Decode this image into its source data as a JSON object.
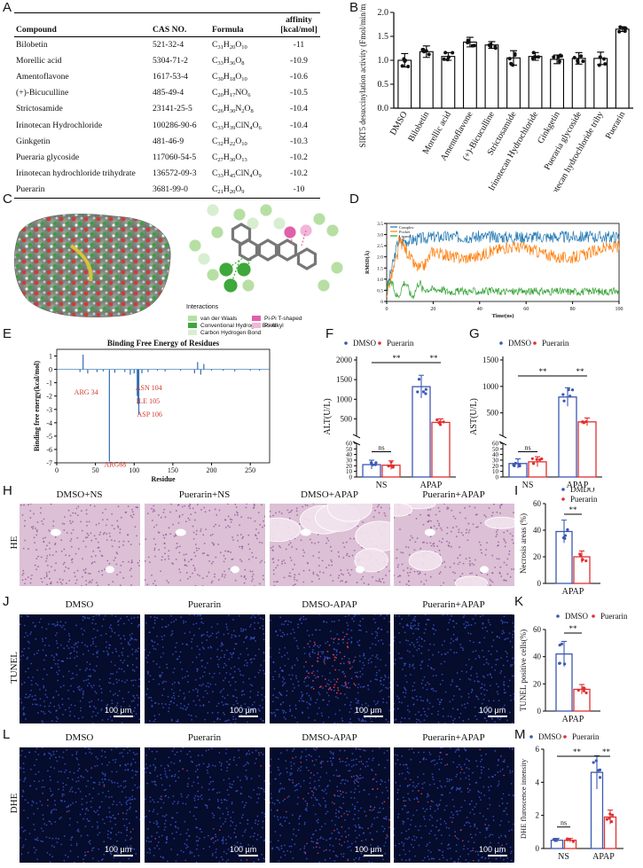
{
  "panels": {
    "A": "A",
    "B": "B",
    "C": "C",
    "D": "D",
    "E": "E",
    "F": "F",
    "G": "G",
    "H": "H",
    "I": "I",
    "J": "J",
    "K": "K",
    "L": "L",
    "M": "M"
  },
  "table": {
    "headers": [
      "Compound",
      "CAS NO.",
      "Formula",
      "affinity [kcal/mol]"
    ],
    "rows": [
      {
        "compound": "Bilobetin",
        "cas": "521-32-4",
        "formula": [
          "C",
          "31",
          "H",
          "20",
          "O",
          "10"
        ],
        "affinity": "-11"
      },
      {
        "compound": "Morellic acid",
        "cas": "5304-71-2",
        "formula": [
          "C",
          "33",
          "H",
          "36",
          "O",
          "8"
        ],
        "affinity": "-10.9"
      },
      {
        "compound": "Amentoflavone",
        "cas": "1617-53-4",
        "formula": [
          "C",
          "30",
          "H",
          "18",
          "O",
          "10"
        ],
        "affinity": "-10.6"
      },
      {
        "compound": "(+)-Bicuculline",
        "cas": "485-49-4",
        "formula": [
          "C",
          "20",
          "H",
          "17",
          "NO",
          "6"
        ],
        "affinity": "-10.5"
      },
      {
        "compound": "Strictosamide",
        "cas": "23141-25-5",
        "formula": [
          "C",
          "26",
          "H",
          "30",
          "N",
          "2",
          "O",
          "8"
        ],
        "affinity": "-10.4"
      },
      {
        "compound": "Irinotecan Hydrochloride",
        "cas": "100286-90-6",
        "formula": [
          "C",
          "33",
          "H",
          "39",
          "ClN",
          "4",
          "O",
          "6"
        ],
        "affinity": "-10.4"
      },
      {
        "compound": "Ginkgetin",
        "cas": "481-46-9",
        "formula": [
          "C",
          "32",
          "H",
          "22",
          "O",
          "10"
        ],
        "affinity": "-10.3"
      },
      {
        "compound": "Pueraria glycoside",
        "cas": "117060-54-5",
        "formula": [
          "C",
          "27",
          "H",
          "30",
          "O",
          "13"
        ],
        "affinity": "-10.2"
      },
      {
        "compound": "Irinotecan hydrochloride trihydrate",
        "cas": "136572-09-3",
        "formula": [
          "C",
          "33",
          "H",
          "45",
          "ClN",
          "4",
          "O",
          "9"
        ],
        "affinity": "-10.2"
      },
      {
        "compound": "Puerarin",
        "cas": "3681-99-0",
        "formula": [
          "C",
          "21",
          "H",
          "20",
          "O",
          "9"
        ],
        "affinity": "-10"
      }
    ]
  },
  "panel_c": {
    "interactions_title": "Interactions",
    "legend": [
      {
        "label": "van der Waals",
        "color": "#b7dfa4"
      },
      {
        "label": "Conventional Hydrogen Bond",
        "color": "#3fa83a"
      },
      {
        "label": "Carbon Hydrogen Bond",
        "color": "#d7eed0"
      },
      {
        "label": "Pi-Pi T-shaped",
        "color": "#e061a8"
      },
      {
        "label": "Pi-Alkyl",
        "color": "#f2b6d8"
      }
    ]
  },
  "panel_e_labels": [
    "ARG 34",
    "ASN 104",
    "ILE 105",
    "ASP 106",
    "ARG68"
  ],
  "panel_d_legend": [
    "Complex",
    "Pocket",
    "Ligand"
  ],
  "micrographs": {
    "he_row": "HE",
    "tunel_row": "TUNEL",
    "dhe_row": "DHE",
    "he_titles": [
      "DMSO+NS",
      "Puerarin+NS",
      "DMSO+APAP",
      "Puerarin+APAP"
    ],
    "tunel_titles": [
      "DMSO",
      "Puerarin",
      "DMSO-APAP",
      "Puerarin+APAP"
    ],
    "dhe_titles": [
      "DMSO",
      "Puerarin",
      "DMSO-APAP",
      "Puerarin+APAP"
    ],
    "scale": "100 μm"
  },
  "chart_data": [
    {
      "id": "B",
      "type": "bar",
      "ylabel": "SIRT5 desuccinylation activity (Fmol/min/mg protein)",
      "ylim": [
        0,
        2.0
      ],
      "yticks": [
        "0.0",
        "0.5",
        "1.0",
        "1.5",
        "2.0"
      ],
      "categories": [
        "DMSO",
        "Bilobetin",
        "Morellic acid",
        "Amentoflavone",
        "(+)-Bicuculline",
        "Strictosamide",
        "Irinotecan Hydrochloride",
        "Ginkgetin",
        "Pueraria glycoside",
        "Irinotecan hydrochloride trihy",
        "Puerarin"
      ],
      "values": [
        1.0,
        1.18,
        1.08,
        1.38,
        1.32,
        1.05,
        1.08,
        1.02,
        1.04,
        1.04,
        1.65
      ],
      "errors": [
        0.14,
        0.12,
        0.08,
        0.1,
        0.07,
        0.15,
        0.08,
        0.09,
        0.12,
        0.13,
        0.05
      ],
      "bar_colors": [
        "#ffffff",
        "#ffffff",
        "#ffffff",
        "#ffffff",
        "#ffffff",
        "#ffffff",
        "#ffffff",
        "#ffffff",
        "#ffffff",
        "#ffffff",
        "#ffffff"
      ]
    },
    {
      "id": "D",
      "type": "line",
      "xlabel": "Time(ns)",
      "ylabel": "RMSD(Å)",
      "xlim": [
        0,
        100
      ],
      "ylim": [
        0,
        3.5
      ],
      "xticks": [
        "0",
        "20",
        "40",
        "60",
        "80",
        "100"
      ],
      "yticks": [
        "0",
        "0.5",
        "1.0",
        "1.5",
        "2.0",
        "2.5",
        "3.0",
        "3.5"
      ],
      "series": [
        {
          "name": "Complex",
          "color": "#1f77b4",
          "level": 2.9
        },
        {
          "name": "Pocket",
          "color": "#ff7f0e",
          "level": 2.2
        },
        {
          "name": "Ligand",
          "color": "#2ca02c",
          "level": 0.45
        }
      ]
    },
    {
      "id": "E",
      "type": "bar",
      "title": "Binding Free Energy of Residues",
      "xlabel": "Residue",
      "ylabel": "Binding free energy(kcal/mol)",
      "xlim": [
        0,
        275
      ],
      "ylim": [
        -7,
        1.5
      ],
      "xticks": [
        "0",
        "50",
        "100",
        "150",
        "200",
        "250"
      ],
      "yticks": [
        "-7",
        "-6",
        "-5",
        "-4",
        "-3",
        "-2",
        "-1",
        "0",
        "1"
      ],
      "x": [
        30,
        34,
        40,
        52,
        60,
        68,
        75,
        88,
        95,
        100,
        104,
        105,
        106,
        110,
        118,
        130,
        140,
        160,
        178,
        182,
        186,
        190,
        200,
        215,
        230,
        250,
        262
      ],
      "values": [
        -0.2,
        1.1,
        -0.3,
        -0.2,
        -0.15,
        -6.9,
        -0.25,
        -0.2,
        -0.4,
        -0.3,
        -2.0,
        -2.6,
        -3.4,
        -0.3,
        -0.2,
        -0.1,
        -0.15,
        -0.1,
        -0.3,
        0.55,
        -0.4,
        0.4,
        -0.1,
        -0.1,
        -0.15,
        -0.1,
        -0.1
      ]
    },
    {
      "id": "F",
      "type": "bar",
      "ylabel": "ALT(U/L)",
      "legend": [
        "DMSO",
        "Puerarin"
      ],
      "groups": [
        "NS",
        "APAP"
      ],
      "series": [
        {
          "name": "DMSO",
          "values": [
            22,
            1320
          ],
          "color": "#3b58b4"
        },
        {
          "name": "Puerarin",
          "values": [
            21,
            410
          ],
          "color": "#e03030"
        }
      ],
      "yticks_low": [
        "0",
        "10",
        "20",
        "30",
        "40",
        "50",
        "60"
      ],
      "yticks_high": [
        "500",
        "1000",
        "1500",
        "2000"
      ],
      "sig": [
        "ns",
        "**",
        "**"
      ]
    },
    {
      "id": "G",
      "type": "bar",
      "ylabel": "AST(U/L)",
      "legend": [
        "DMSO",
        "Puerarin"
      ],
      "groups": [
        "NS",
        "APAP"
      ],
      "series": [
        {
          "name": "DMSO",
          "values": [
            24,
            800
          ],
          "color": "#3b58b4"
        },
        {
          "name": "Puerarin",
          "values": [
            27,
            330
          ],
          "color": "#e03030"
        }
      ],
      "yticks_low": [
        "0",
        "10",
        "20",
        "30",
        "40",
        "50",
        "60"
      ],
      "yticks_high": [
        "500",
        "1000",
        "1500"
      ],
      "sig": [
        "ns",
        "**",
        "**"
      ]
    },
    {
      "id": "I",
      "type": "bar",
      "ylabel": "Necrosis areas (%)",
      "legend": [
        "DMDO",
        "Puerarin"
      ],
      "groups": [
        "APAP"
      ],
      "series": [
        {
          "name": "DMDO",
          "values": [
            39
          ],
          "color": "#3b58b4"
        },
        {
          "name": "Puerarin",
          "values": [
            20
          ],
          "color": "#e03030"
        }
      ],
      "ylim": [
        0,
        60
      ],
      "yticks": [
        "0",
        "20",
        "40",
        "60"
      ],
      "sig": [
        "**"
      ]
    },
    {
      "id": "K",
      "type": "bar",
      "ylabel": "TUNEL positive cells(%)",
      "legend": [
        "DMSO",
        "Puerarin"
      ],
      "groups": [
        "APAP"
      ],
      "series": [
        {
          "name": "DMSO",
          "values": [
            42
          ],
          "color": "#3b58b4"
        },
        {
          "name": "Puerarin",
          "values": [
            16
          ],
          "color": "#e03030"
        }
      ],
      "ylim": [
        0,
        60
      ],
      "yticks": [
        "0",
        "20",
        "40",
        "60"
      ],
      "sig": [
        "**"
      ]
    },
    {
      "id": "M",
      "type": "bar",
      "ylabel": "DHE fluroscence intensity",
      "legend": [
        "DMSO",
        "Puerarin"
      ],
      "groups": [
        "NS",
        "APAP"
      ],
      "series": [
        {
          "name": "DMSO",
          "values": [
            0.5,
            4.6
          ],
          "color": "#3b58b4"
        },
        {
          "name": "Puerarin",
          "values": [
            0.5,
            1.9
          ],
          "color": "#e03030"
        }
      ],
      "ylim": [
        0,
        6
      ],
      "yticks": [
        "0",
        "2",
        "4",
        "6"
      ],
      "sig": [
        "ns",
        "**",
        "**"
      ]
    }
  ]
}
